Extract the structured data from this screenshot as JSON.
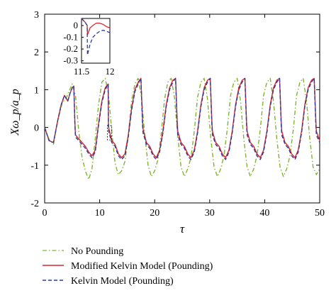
{
  "chart_data": {
    "type": "line",
    "xlabel": "τ",
    "ylabel": "Xω_p/a_p",
    "xlim": [
      0,
      50
    ],
    "ylim": [
      -2,
      3
    ],
    "xticks": [
      0,
      10,
      20,
      30,
      40,
      50
    ],
    "yticks": [
      -2,
      -1,
      0,
      1,
      2,
      3
    ],
    "grid": false,
    "legend_position": "below",
    "series": [
      {
        "name": "No Pounding",
        "color": "#7fb52e",
        "dash": "dashdot",
        "x": [
          0,
          0.8,
          1.6,
          2.4,
          3.2,
          4.0,
          5.0,
          5.6,
          6.2,
          6.8,
          7.4,
          8.0,
          8.6,
          9.2,
          9.8,
          10.4,
          11.0,
          11.6,
          12.2,
          12.8,
          13.4,
          14.0,
          14.6,
          15.2,
          15.8,
          16.4,
          17.0,
          17.6,
          18.2,
          18.8,
          19.4,
          20.0,
          20.6,
          21.2,
          21.8,
          22.4,
          23.0,
          23.6,
          24.2,
          24.8,
          25.4,
          26.0,
          26.6,
          27.2,
          27.8,
          28.4,
          29.0,
          29.6,
          30.2,
          30.8,
          31.4,
          32.0,
          32.6,
          33.2,
          33.8,
          34.4,
          35.0,
          35.6,
          36.2,
          36.8,
          37.4,
          38.0,
          38.6,
          39.2,
          39.8,
          40.4,
          41.0,
          41.6,
          42.2,
          42.8,
          43.4,
          44.0,
          44.6,
          45.2,
          45.8,
          46.4,
          47.0,
          47.6,
          48.2,
          48.8,
          49.4,
          50.0
        ],
        "y": [
          0,
          -0.32,
          -0.45,
          0.2,
          0.65,
          0.8,
          1.15,
          0.85,
          -0.1,
          -0.8,
          -1.15,
          -1.38,
          -1.1,
          -0.3,
          0.6,
          1.2,
          1.3,
          0.9,
          -0.1,
          -0.95,
          -1.25,
          -1.15,
          -0.9,
          -0.2,
          0.7,
          1.15,
          1.3,
          0.8,
          -0.2,
          -1.0,
          -1.3,
          -1.15,
          -0.85,
          -0.15,
          0.75,
          1.2,
          1.3,
          0.8,
          -0.25,
          -1.05,
          -1.3,
          -1.1,
          -0.8,
          -0.1,
          0.8,
          1.2,
          1.3,
          0.75,
          -0.3,
          -1.05,
          -1.3,
          -1.1,
          -0.75,
          -0.05,
          0.85,
          1.2,
          1.3,
          0.7,
          -0.3,
          -1.05,
          -1.3,
          -1.1,
          -0.75,
          -0.05,
          0.85,
          1.2,
          1.3,
          0.7,
          -0.3,
          -1.05,
          -1.3,
          -1.1,
          -0.75,
          -0.05,
          0.85,
          1.2,
          1.3,
          0.7,
          -0.3,
          -1.05,
          -1.25,
          -1.1
        ]
      },
      {
        "name": "Modified Kelvin Model (Pounding)",
        "color": "#d8262c",
        "dash": "solid",
        "x": [
          0,
          0.8,
          1.6,
          2.4,
          3.0,
          3.6,
          4.2,
          4.6,
          5.0,
          5.3,
          5.5,
          5.6,
          6.2,
          6.8,
          7.4,
          8.0,
          8.6,
          9.2,
          9.8,
          10.4,
          11.0,
          11.55,
          11.6,
          11.7,
          12.2,
          12.8,
          13.4,
          14.0,
          14.6,
          15.2,
          15.8,
          16.4,
          17.0,
          17.5,
          17.8,
          17.9,
          18.5,
          19.1,
          19.7,
          20.3,
          20.9,
          21.5,
          22.1,
          22.7,
          23.3,
          23.8,
          24.1,
          24.2,
          24.8,
          25.4,
          26.0,
          26.6,
          27.2,
          27.8,
          28.4,
          29.0,
          29.6,
          30.1,
          30.4,
          30.5,
          31.1,
          31.7,
          32.3,
          32.9,
          33.5,
          34.1,
          34.7,
          35.3,
          35.9,
          36.4,
          36.7,
          36.8,
          37.4,
          38.0,
          38.6,
          39.2,
          39.8,
          40.4,
          41.0,
          41.6,
          42.2,
          42.7,
          43.0,
          43.1,
          43.7,
          44.3,
          44.9,
          45.5,
          46.1,
          46.7,
          47.3,
          47.9,
          48.5,
          49.0,
          49.3,
          49.4,
          50.0
        ],
        "y": [
          0,
          -0.35,
          -0.4,
          0.2,
          0.6,
          0.85,
          0.7,
          0.9,
          1.05,
          1.1,
          0.1,
          -0.2,
          -0.3,
          -0.4,
          -0.5,
          -0.65,
          -0.75,
          -0.6,
          0.1,
          0.7,
          1.05,
          1.15,
          0.05,
          -0.05,
          -0.35,
          -0.45,
          -0.7,
          -0.8,
          -0.7,
          -0.2,
          0.5,
          1.0,
          1.2,
          1.3,
          0.15,
          -0.05,
          -0.4,
          -0.5,
          -0.7,
          -0.8,
          -0.6,
          -0.1,
          0.6,
          1.05,
          1.25,
          1.3,
          0.15,
          -0.1,
          -0.4,
          -0.5,
          -0.7,
          -0.8,
          -0.6,
          -0.1,
          0.6,
          1.05,
          1.25,
          1.3,
          0.15,
          -0.1,
          -0.4,
          -0.5,
          -0.7,
          -0.8,
          -0.6,
          -0.1,
          0.6,
          1.05,
          1.25,
          1.3,
          0.15,
          -0.1,
          -0.4,
          -0.5,
          -0.7,
          -0.8,
          -0.6,
          -0.1,
          0.6,
          1.05,
          1.25,
          1.3,
          0.15,
          -0.1,
          -0.4,
          -0.5,
          -0.7,
          -0.8,
          -0.6,
          -0.1,
          0.6,
          1.05,
          1.25,
          1.3,
          0.15,
          -0.1,
          -0.35
        ]
      },
      {
        "name": "Kelvin Model (Pounding)",
        "color": "#2b3a9c",
        "dash": "dashed",
        "x": [
          0,
          0.8,
          1.6,
          2.4,
          3.0,
          3.6,
          4.2,
          4.6,
          5.0,
          5.3,
          5.5,
          5.6,
          6.2,
          6.8,
          7.4,
          8.0,
          8.6,
          9.2,
          9.8,
          10.4,
          11.0,
          11.55,
          11.6,
          11.7,
          12.2,
          12.8,
          13.4,
          14.0,
          14.6,
          15.2,
          15.8,
          16.4,
          17.0,
          17.5,
          17.8,
          17.9,
          18.5,
          19.1,
          19.7,
          20.3,
          20.9,
          21.5,
          22.1,
          22.7,
          23.3,
          23.8,
          24.1,
          24.2,
          24.8,
          25.4,
          26.0,
          26.6,
          27.2,
          27.8,
          28.4,
          29.0,
          29.6,
          30.1,
          30.4,
          30.5,
          31.1,
          31.7,
          32.3,
          32.9,
          33.5,
          34.1,
          34.7,
          35.3,
          35.9,
          36.4,
          36.7,
          36.8,
          37.4,
          38.0,
          38.6,
          39.2,
          39.8,
          40.4,
          41.0,
          41.6,
          42.2,
          42.7,
          43.0,
          43.1,
          43.7,
          44.3,
          44.9,
          45.5,
          46.1,
          46.7,
          47.3,
          47.9,
          48.5,
          49.0,
          49.3,
          49.4,
          50.0
        ],
        "y": [
          0,
          -0.35,
          -0.4,
          0.2,
          0.6,
          0.85,
          0.7,
          0.9,
          1.05,
          1.1,
          0.05,
          -0.25,
          -0.35,
          -0.45,
          -0.55,
          -0.7,
          -0.8,
          -0.65,
          0.05,
          0.65,
          1.0,
          1.15,
          -0.05,
          -0.15,
          -0.4,
          -0.5,
          -0.75,
          -0.85,
          -0.75,
          -0.25,
          0.45,
          0.95,
          1.15,
          1.3,
          0.05,
          -0.15,
          -0.45,
          -0.55,
          -0.75,
          -0.85,
          -0.65,
          -0.15,
          0.55,
          1.0,
          1.2,
          1.3,
          0.05,
          -0.2,
          -0.45,
          -0.55,
          -0.75,
          -0.85,
          -0.65,
          -0.15,
          0.55,
          1.0,
          1.2,
          1.3,
          0.05,
          -0.2,
          -0.45,
          -0.55,
          -0.75,
          -0.85,
          -0.65,
          -0.15,
          0.55,
          1.0,
          1.2,
          1.3,
          0.05,
          -0.2,
          -0.45,
          -0.55,
          -0.75,
          -0.85,
          -0.65,
          -0.15,
          0.55,
          1.0,
          1.2,
          1.3,
          0.05,
          -0.2,
          -0.45,
          -0.55,
          -0.75,
          -0.85,
          -0.65,
          -0.15,
          0.55,
          1.0,
          1.2,
          1.3,
          0.05,
          -0.2,
          -0.4
        ]
      }
    ],
    "inset": {
      "xlim": [
        11.5,
        12
      ],
      "ylim": [
        -0.32,
        0.06
      ],
      "xticks": [
        11.5,
        12
      ],
      "xtick_labels": [
        "11.5",
        "12"
      ],
      "yticks": [
        0,
        -0.1,
        -0.2,
        -0.3
      ],
      "ytick_labels": [
        "0",
        "-0.1",
        "-0.2",
        "-0.3"
      ],
      "series": [
        {
          "ref": "Modified Kelvin Model (Pounding)",
          "x": [
            11.5,
            11.56,
            11.6,
            11.605,
            11.62,
            11.65,
            11.7,
            11.76,
            11.82,
            11.88,
            11.94,
            12.0
          ],
          "y": [
            0.06,
            0.03,
            0.0,
            -0.08,
            -0.06,
            -0.02,
            0.0,
            0.02,
            0.02,
            0.01,
            -0.01,
            -0.02
          ]
        },
        {
          "ref": "Kelvin Model (Pounding)",
          "x": [
            11.5,
            11.56,
            11.6,
            11.605,
            11.62,
            11.65,
            11.7,
            11.76,
            11.82,
            11.88,
            11.94,
            12.0
          ],
          "y": [
            0.06,
            0.03,
            0.0,
            -0.25,
            -0.22,
            -0.16,
            -0.1,
            -0.07,
            -0.05,
            -0.04,
            -0.05,
            -0.06
          ]
        }
      ]
    },
    "zoom_box": {
      "x": [
        11.4,
        12.2
      ],
      "y": [
        -0.33,
        0.05
      ]
    }
  }
}
